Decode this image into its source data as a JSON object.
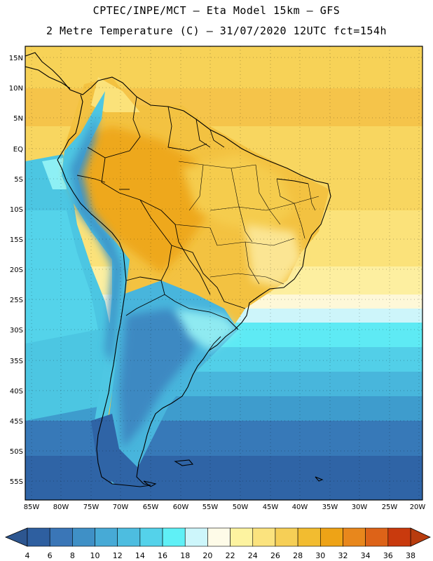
{
  "header": {
    "line1": "CPTEC/INPE/MCT —  Eta Model 15km — GFS",
    "line2": "2 Metre Temperature (C) — 31/07/2020 12UTC fct=154h"
  },
  "map": {
    "lat_labels": [
      "15N",
      "10N",
      "5N",
      "EQ",
      "5S",
      "10S",
      "15S",
      "20S",
      "25S",
      "30S",
      "35S",
      "40S",
      "45S",
      "50S",
      "55S"
    ],
    "lon_labels": [
      "85W",
      "80W",
      "75W",
      "70W",
      "65W",
      "60W",
      "55W",
      "50W",
      "45W",
      "40W",
      "35W",
      "30W",
      "25W",
      "20W"
    ]
  },
  "colorbar": {
    "labels": [
      "4",
      "6",
      "8",
      "10",
      "12",
      "14",
      "16",
      "18",
      "20",
      "22",
      "24",
      "26",
      "28",
      "30",
      "32",
      "34",
      "36",
      "38"
    ],
    "colors": [
      "#2e5fa0",
      "#3a76b7",
      "#3f90c6",
      "#47aad6",
      "#4dbde0",
      "#54d2ea",
      "#5ff0f6",
      "#cdf6fb",
      "#fefbe8",
      "#fdf3a0",
      "#fbe37e",
      "#f6cf56",
      "#f2bc30",
      "#eea316",
      "#e8871c",
      "#dd6318",
      "#c93a0d"
    ],
    "left_color": "#2d5690",
    "right_color": "#b83c0e"
  }
}
